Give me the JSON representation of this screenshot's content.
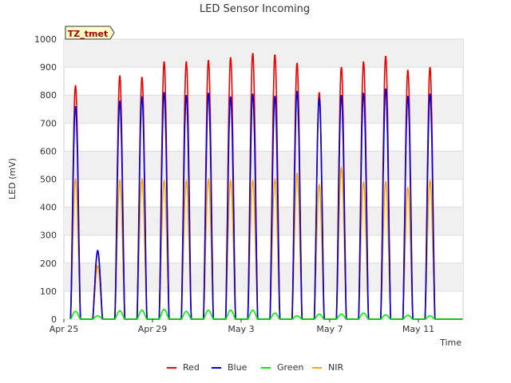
{
  "chart_data": {
    "type": "line",
    "title": "LED Sensor Incoming",
    "xlabel": "Time",
    "ylabel": "LED (mV)",
    "badge": "TZ_tmet",
    "x_ticks": [
      "Apr 25",
      "Apr 29",
      "May 3",
      "May 7",
      "May 11"
    ],
    "y_ticks": [
      0,
      100,
      200,
      300,
      400,
      500,
      600,
      700,
      800,
      900,
      1000
    ],
    "ylim": [
      0,
      1000
    ],
    "x_range_days": [
      "Apr 25",
      "May 14"
    ],
    "grid": true,
    "legend_position": "bottom",
    "days": [
      "Apr 25",
      "Apr 26",
      "Apr 27",
      "Apr 28",
      "Apr 29",
      "Apr 30",
      "May 1",
      "May 2",
      "May 3",
      "May 4",
      "May 5",
      "May 6",
      "May 7",
      "May 8",
      "May 9",
      "May 10",
      "May 11",
      "May 12"
    ],
    "series": [
      {
        "name": "Red",
        "color": "#ee0000",
        "daily_peaks": [
          835,
          240,
          870,
          865,
          920,
          920,
          925,
          935,
          950,
          945,
          915,
          810,
          900,
          920,
          940,
          890,
          900,
          0
        ]
      },
      {
        "name": "Blue",
        "color": "#0000dd",
        "daily_peaks": [
          760,
          245,
          780,
          795,
          810,
          800,
          808,
          795,
          805,
          797,
          815,
          790,
          800,
          808,
          823,
          797,
          805,
          0
        ]
      },
      {
        "name": "Green",
        "color": "#00ee00",
        "daily_peaks": [
          28,
          12,
          30,
          32,
          35,
          28,
          32,
          32,
          32,
          22,
          12,
          18,
          18,
          22,
          15,
          14,
          12,
          0
        ]
      },
      {
        "name": "NIR",
        "color": "#ffa500",
        "daily_peaks": [
          500,
          190,
          495,
          500,
          495,
          495,
          500,
          495,
          495,
          500,
          520,
          480,
          540,
          490,
          490,
          470,
          495,
          0
        ]
      }
    ]
  }
}
